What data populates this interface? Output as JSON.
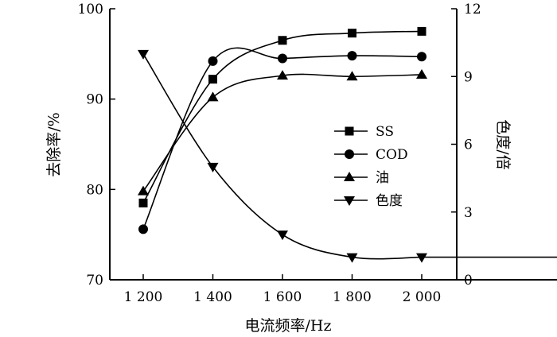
{
  "chart_data": {
    "type": "line",
    "x": [
      1200,
      1400,
      1600,
      1800,
      2000
    ],
    "x_tick_labels": [
      "1 200",
      "1 400",
      "1 600",
      "1 800",
      "2 000"
    ],
    "xlabel": "电流频率/Hz",
    "ylabel_left": "去除率/%",
    "ylabel_right": "色度/倍",
    "ylim_left": [
      70,
      100
    ],
    "ylim_right": [
      0,
      12
    ],
    "yticks_left": [
      "70",
      "80",
      "90",
      "100"
    ],
    "yticks_right": [
      "0",
      "3",
      "6",
      "9",
      "12"
    ],
    "grid": false,
    "legend_position": "right-middle",
    "series": [
      {
        "name": "SS",
        "marker": "square",
        "axis": "left",
        "values": [
          78.5,
          92.2,
          96.5,
          97.3,
          97.5
        ]
      },
      {
        "name": "COD",
        "marker": "circle",
        "axis": "left",
        "values": [
          75.6,
          94.2,
          94.5,
          94.8,
          94.7
        ]
      },
      {
        "name": "油",
        "marker": "triangle-up",
        "axis": "left",
        "values": [
          79.8,
          90.2,
          92.6,
          92.5,
          92.7
        ]
      },
      {
        "name": "色度",
        "marker": "triangle-down",
        "axis": "right",
        "values": [
          10.0,
          5.0,
          2.0,
          1.0,
          1.0
        ]
      }
    ]
  }
}
